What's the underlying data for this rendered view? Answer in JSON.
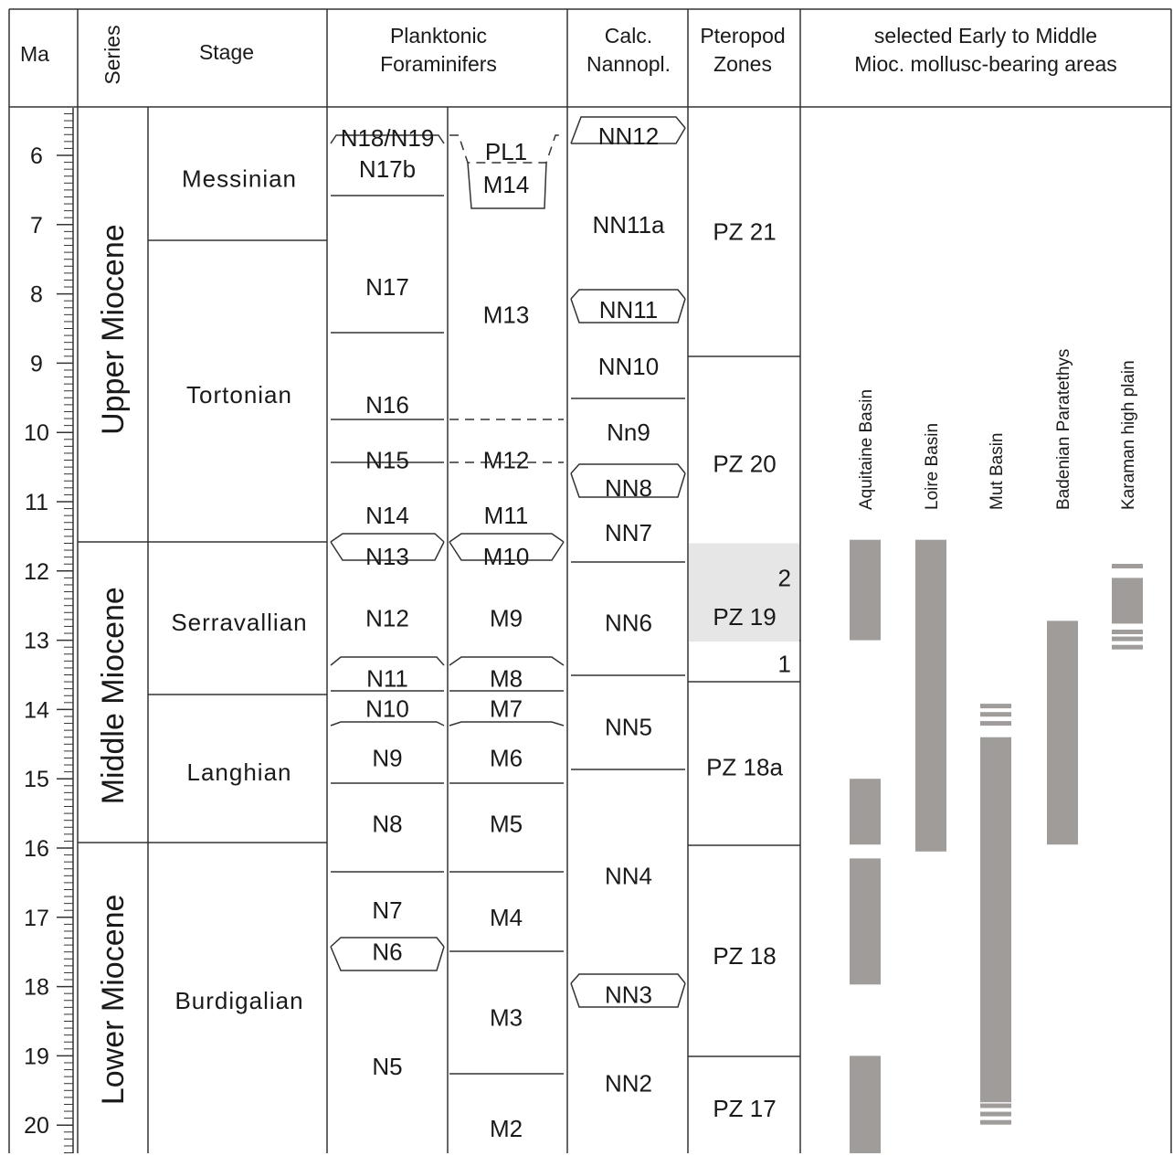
{
  "headers": {
    "ma": "Ma",
    "series": "Series",
    "stage": "Stage",
    "foram": [
      "Planktonic",
      "Foraminifers"
    ],
    "nanno": [
      "Calc.",
      "Nannopl."
    ],
    "ptero": [
      "Pteropod",
      "Zones"
    ],
    "areas": [
      "selected Early to Middle",
      "Mioc. mollusc-bearing areas"
    ]
  },
  "ticks": [
    "6",
    "7",
    "8",
    "9",
    "10",
    "11",
    "12",
    "13",
    "14",
    "15",
    "16",
    "17",
    "18",
    "19",
    "20"
  ],
  "series": [
    {
      "label": "Upper Miocene",
      "top": 5.4,
      "bottom": 11.63
    },
    {
      "label": "Middle Miocene",
      "top": 11.63,
      "bottom": 15.97
    },
    {
      "label": "Lower Miocene",
      "top": 15.97,
      "bottom": 20.5
    }
  ],
  "stages": [
    {
      "label": "Messinian",
      "top": 5.4,
      "bottom": 7.25
    },
    {
      "label": "Tortonian",
      "top": 7.25,
      "bottom": 11.63
    },
    {
      "label": "Serravallian",
      "top": 11.63,
      "bottom": 13.82
    },
    {
      "label": "Langhian",
      "top": 13.82,
      "bottom": 15.97
    },
    {
      "label": "Burdigalian",
      "top": 15.97,
      "bottom": 20.5
    }
  ],
  "n_zones": [
    {
      "label": "N18/N19",
      "age": 5.75
    },
    {
      "label": "N17b",
      "age": 6.2
    },
    {
      "label": "N17",
      "age": 7.9
    },
    {
      "label": "N16",
      "age": 9.6
    },
    {
      "label": "N15",
      "age": 10.4
    },
    {
      "label": "N14",
      "age": 11.2
    },
    {
      "label": "N13",
      "age": 11.79
    },
    {
      "label": "N12",
      "age": 12.68
    },
    {
      "label": "N11",
      "age": 13.55
    },
    {
      "label": "N10",
      "age": 13.99
    },
    {
      "label": "N9",
      "age": 14.7
    },
    {
      "label": "N8",
      "age": 15.65
    },
    {
      "label": "N7",
      "age": 16.9
    },
    {
      "label": "N6",
      "age": 17.5
    },
    {
      "label": "N5",
      "age": 19.15
    }
  ],
  "m_zones": [
    {
      "label": "PL1",
      "age": 5.95
    },
    {
      "label": "M14",
      "age": 6.42
    },
    {
      "label": "M13",
      "age": 8.3
    },
    {
      "label": "M12",
      "age": 10.4
    },
    {
      "label": "M11",
      "age": 11.2
    },
    {
      "label": "M10",
      "age": 11.79
    },
    {
      "label": "M9",
      "age": 12.68
    },
    {
      "label": "M8",
      "age": 13.55
    },
    {
      "label": "M7",
      "age": 13.99
    },
    {
      "label": "M6",
      "age": 14.7
    },
    {
      "label": "M5",
      "age": 15.65
    },
    {
      "label": "M4",
      "age": 17.0
    },
    {
      "label": "M3",
      "age": 18.45
    },
    {
      "label": "M2",
      "age": 20.05
    }
  ],
  "nn_zones": [
    {
      "label": "NN12",
      "age": 5.72
    },
    {
      "label": "NN11a",
      "age": 7.0
    },
    {
      "label": "NN11",
      "age": 8.23
    },
    {
      "label": "NN10",
      "age": 9.05
    },
    {
      "label": "Nn9",
      "age": 10.0
    },
    {
      "label": "NN8",
      "age": 10.8
    },
    {
      "label": "NN7",
      "age": 11.45
    },
    {
      "label": "NN6",
      "age": 12.75
    },
    {
      "label": "NN5",
      "age": 14.25
    },
    {
      "label": "NN4",
      "age": 16.4
    },
    {
      "label": "NN3",
      "age": 18.12
    },
    {
      "label": "NN2",
      "age": 19.4
    }
  ],
  "ptero_zones": [
    {
      "label": "PZ 21",
      "age": 7.1
    },
    {
      "label": "PZ 20",
      "age": 10.45
    },
    {
      "label": "2",
      "age": 12.1
    },
    {
      "label": "PZ 19",
      "age": 12.66
    },
    {
      "label": "1",
      "age": 13.34
    },
    {
      "label": "PZ 18a",
      "age": 14.83
    },
    {
      "label": "PZ 18",
      "age": 17.56
    },
    {
      "label": "PZ 17",
      "age": 19.76
    }
  ],
  "pz19_highlight": {
    "top": 11.6,
    "bottom": 13.02,
    "color": "#e6e6e6"
  },
  "areas": [
    {
      "name": "Aquitaine Basin",
      "ranges": [
        [
          11.55,
          13.0
        ],
        [
          15.0,
          15.95
        ],
        [
          16.15,
          17.97
        ],
        [
          19.0,
          20.5
        ]
      ]
    },
    {
      "name": "Loire Basin",
      "ranges": [
        [
          11.55,
          16.05
        ]
      ]
    },
    {
      "name": "Mut Basin",
      "ranges": [
        [
          14.4,
          19.67
        ]
      ],
      "ticks_top": [
        13.95,
        14.07,
        14.2
      ],
      "ticks_bottom": [
        19.72,
        19.84,
        19.96
      ]
    },
    {
      "name": "Badenian Paratethys",
      "ranges": [
        [
          12.72,
          15.95
        ]
      ]
    },
    {
      "name": "Karaman high plain",
      "ranges": [
        [
          12.1,
          12.76
        ]
      ],
      "ticks_top": [
        11.93
      ],
      "ticks_bottom": [
        12.88,
        12.98,
        13.1
      ]
    }
  ],
  "bar_color": "#a09c99"
}
